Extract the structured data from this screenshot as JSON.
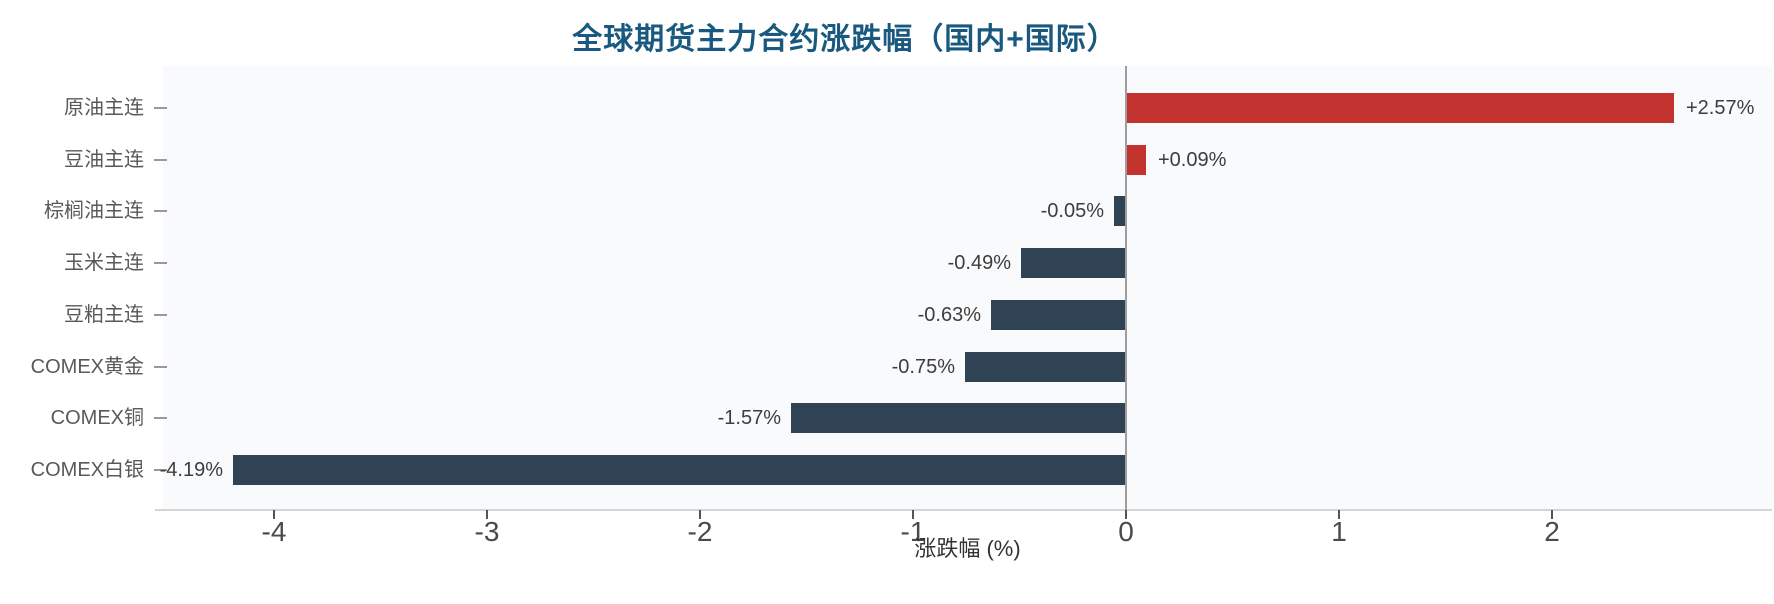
{
  "chart_data": {
    "type": "bar",
    "orientation": "horizontal",
    "title": "全球期货主力合约涨跌幅（国内+国际）",
    "xlabel": "涨跌幅 (%)",
    "categories": [
      "原油主连",
      "豆油主连",
      "棕榈油主连",
      "玉米主连",
      "豆粕主连",
      "COMEX黄金",
      "COMEX铜",
      "COMEX白银"
    ],
    "values": [
      2.57,
      0.09,
      -0.05,
      -0.49,
      -0.63,
      -0.75,
      -1.57,
      -4.19
    ],
    "value_labels": [
      "+2.57%",
      "+0.09%",
      "-0.05%",
      "-0.49%",
      "-0.63%",
      "-0.75%",
      "-1.57%",
      "-4.19%"
    ],
    "x_ticks": [
      -4,
      -3,
      -2,
      -1,
      0,
      1,
      2
    ],
    "x_tick_labels": [
      "-4",
      "-3",
      "-2",
      "-1",
      "0",
      "1",
      "2"
    ],
    "xlim": [
      -4.52,
      3.03
    ],
    "grid": false,
    "legend": null,
    "colors": {
      "positive_bar": "#c23330",
      "negative_bar": "#2f4355",
      "title": "#1a597f",
      "plot_background": "#f9fafc",
      "zero_line": "#9e9e9e",
      "axis_line": "#d5d5d5",
      "tick_mark": "#555555",
      "tick_label": "#4a4a4a",
      "category_label": "#595959",
      "value_label": "#3d3d3d"
    }
  }
}
